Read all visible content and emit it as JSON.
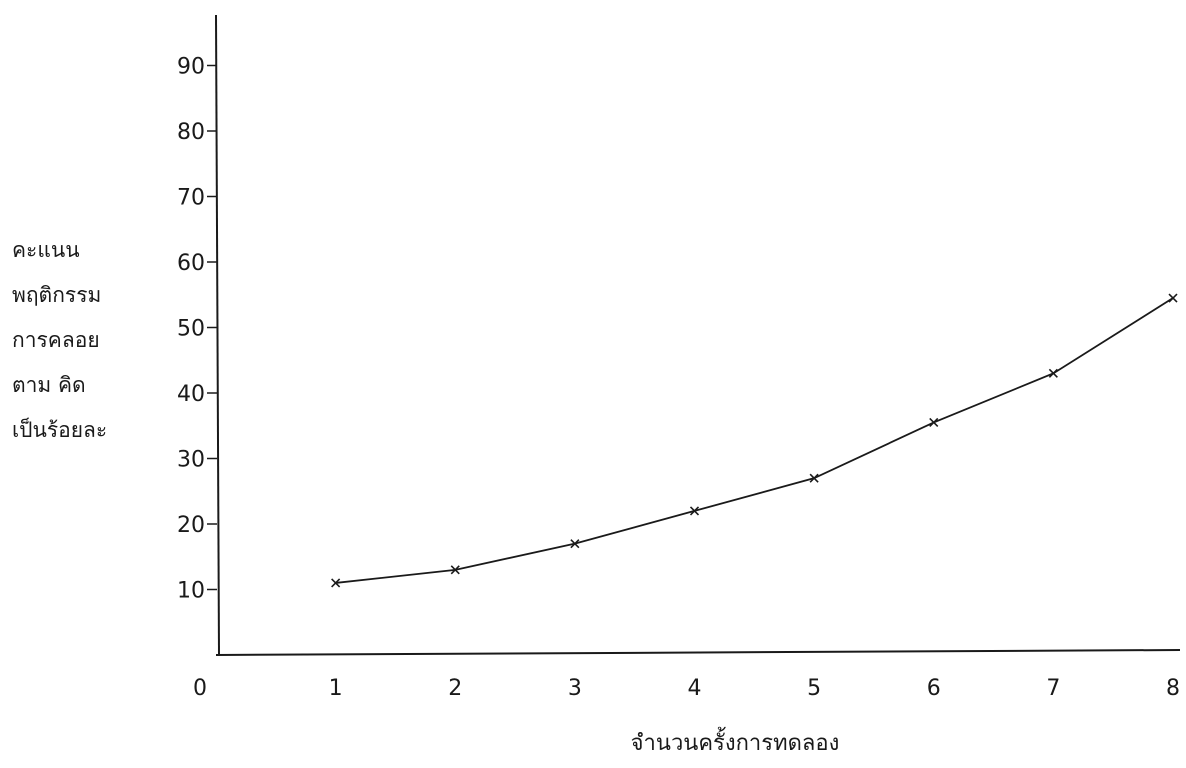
{
  "chart_data": {
    "type": "line",
    "title": "",
    "xlabel": "จำนวนครั้งการทดลอง",
    "ylabel_lines": [
      "คะแนน",
      "พฤติกรรม",
      "การคลอย",
      "ตาม คิด",
      "เป็นร้อยละ"
    ],
    "x_ticks": [
      "0",
      "1",
      "2",
      "3",
      "4",
      "5",
      "6",
      "7",
      "8"
    ],
    "y_ticks": [
      "10",
      "20",
      "30",
      "40",
      "50",
      "60",
      "70",
      "80",
      "90"
    ],
    "xlim": [
      0,
      8
    ],
    "ylim": [
      0,
      100
    ],
    "grid": false,
    "series": [
      {
        "x": [
          1,
          2,
          3,
          4,
          5,
          6,
          7,
          8
        ],
        "values": [
          11,
          13,
          17,
          22,
          27,
          35.5,
          43,
          54.5
        ]
      }
    ],
    "colors": {
      "line": "#1a1a1a",
      "axis": "#1a1a1a"
    }
  }
}
